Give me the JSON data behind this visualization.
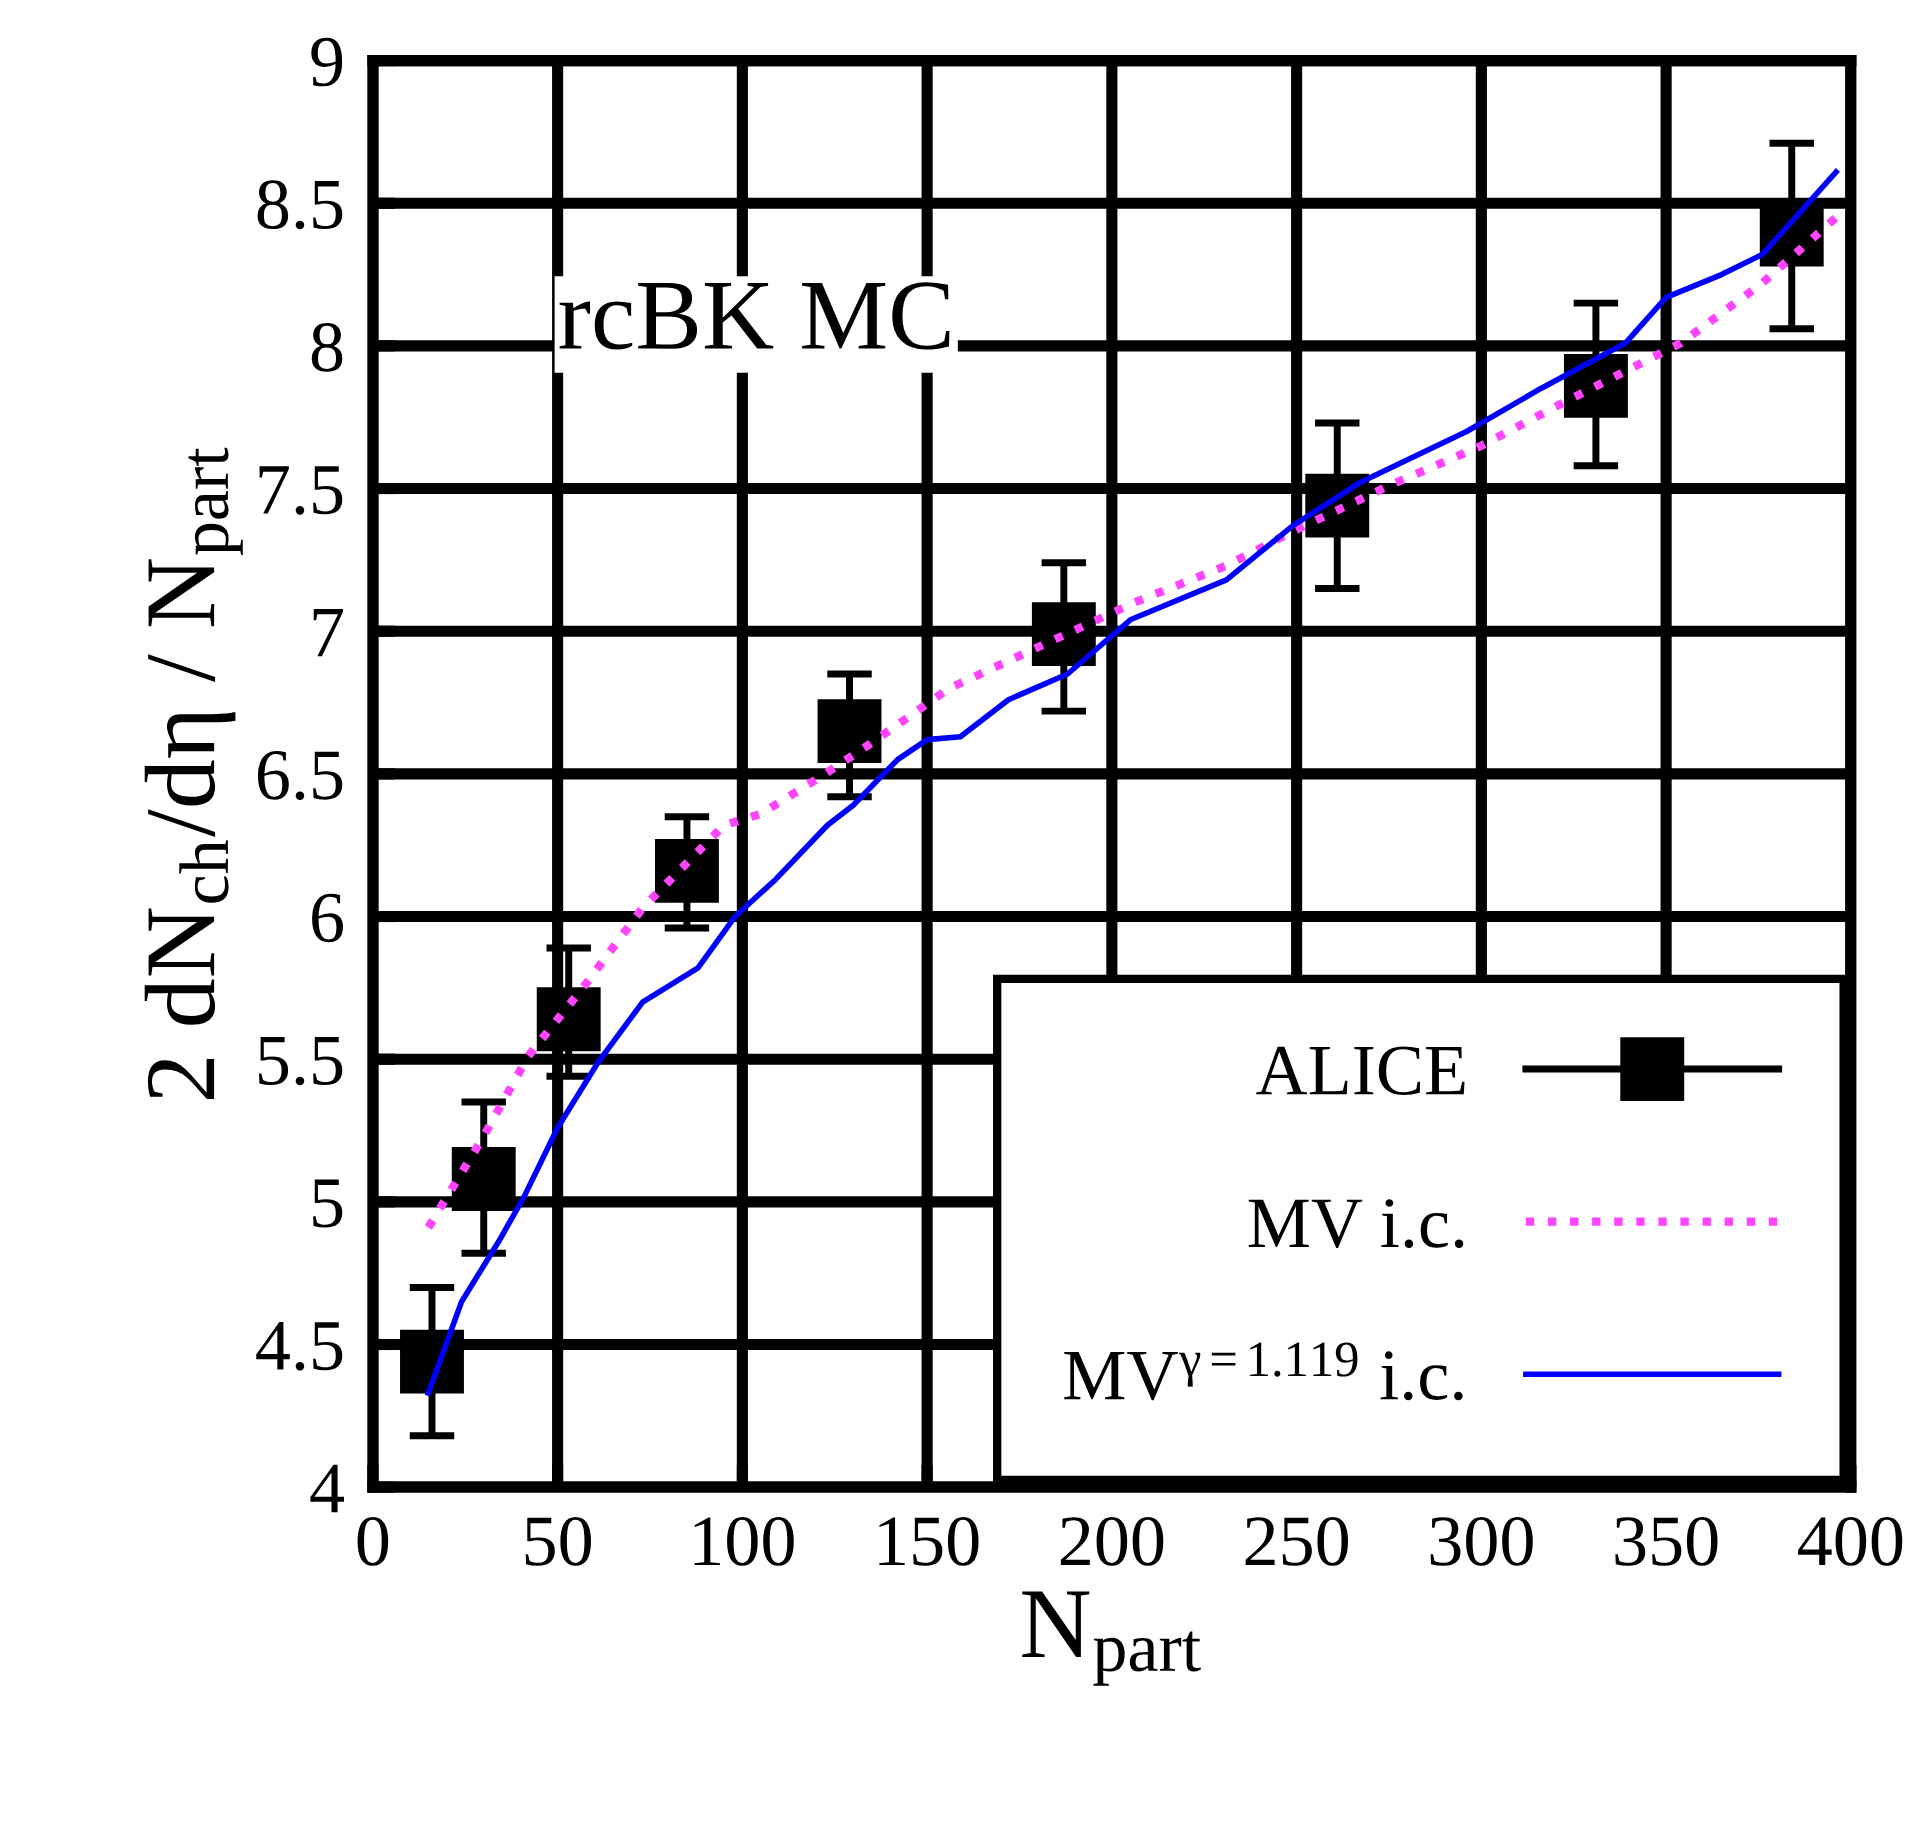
{
  "chart_data": {
    "type": "scatter",
    "xlabel": "N$_{part}$",
    "ylabel": "2 dN$_{ch}$/dη / N$_{part}$",
    "annotations": [
      "rcBK MC"
    ],
    "xlim": [
      0,
      400
    ],
    "ylim": [
      4,
      9
    ],
    "xticks": [
      0,
      50,
      100,
      150,
      200,
      250,
      300,
      350,
      400
    ],
    "yticks": [
      4,
      4.5,
      5,
      5.5,
      6,
      6.5,
      7,
      7.5,
      8,
      8.5,
      9
    ],
    "grid": true,
    "legend": "bottom right",
    "series": [
      {
        "name": "ALICE",
        "color": "#000000",
        "marker": "square",
        "x": [
          16,
          30,
          53,
          85,
          129,
          187,
          261,
          331,
          384
        ],
        "values": [
          4.44,
          5.08,
          5.64,
          6.16,
          6.65,
          6.99,
          7.44,
          7.86,
          8.39
        ],
        "errors": [
          [
            4.18,
            4.7
          ],
          [
            4.82,
            5.35
          ],
          [
            5.44,
            5.89
          ],
          [
            5.96,
            6.35
          ],
          [
            6.42,
            6.85
          ],
          [
            6.72,
            7.24
          ],
          [
            7.15,
            7.73
          ],
          [
            7.58,
            8.15
          ],
          [
            8.06,
            8.71
          ]
        ]
      },
      {
        "name": "MV i.c.",
        "type": "line",
        "color": "#ff44ff",
        "line_style": "dotted",
        "marker": "none",
        "x": [
          15,
          30,
          42,
          58,
          73,
          95,
          105,
          120,
          134,
          156,
          181,
          206,
          231,
          249,
          275,
          300,
          322,
          354,
          376,
          396
        ],
        "values": [
          4.91,
          5.23,
          5.51,
          5.77,
          6.03,
          6.32,
          6.36,
          6.48,
          6.6,
          6.8,
          6.95,
          7.1,
          7.23,
          7.35,
          7.51,
          7.65,
          7.8,
          8.01,
          8.22,
          8.45
        ]
      },
      {
        "name": "MV$^{γ=1.119}$ i.c.",
        "type": "line",
        "color": "#0000ff",
        "line_style": "solid",
        "marker": "none",
        "x": [
          15,
          24,
          34,
          41,
          50,
          61,
          73,
          88,
          98,
          109,
          123,
          130,
          142,
          150,
          159,
          172,
          188,
          205,
          231,
          249,
          267,
          296,
          316,
          339,
          350,
          365,
          376,
          396
        ],
        "values": [
          4.33,
          4.65,
          4.86,
          5.02,
          5.26,
          5.49,
          5.7,
          5.82,
          6.0,
          6.13,
          6.32,
          6.39,
          6.55,
          6.62,
          6.63,
          6.76,
          6.85,
          7.04,
          7.18,
          7.37,
          7.52,
          7.7,
          7.85,
          8.01,
          8.17,
          8.25,
          8.32,
          8.61
        ]
      }
    ]
  }
}
